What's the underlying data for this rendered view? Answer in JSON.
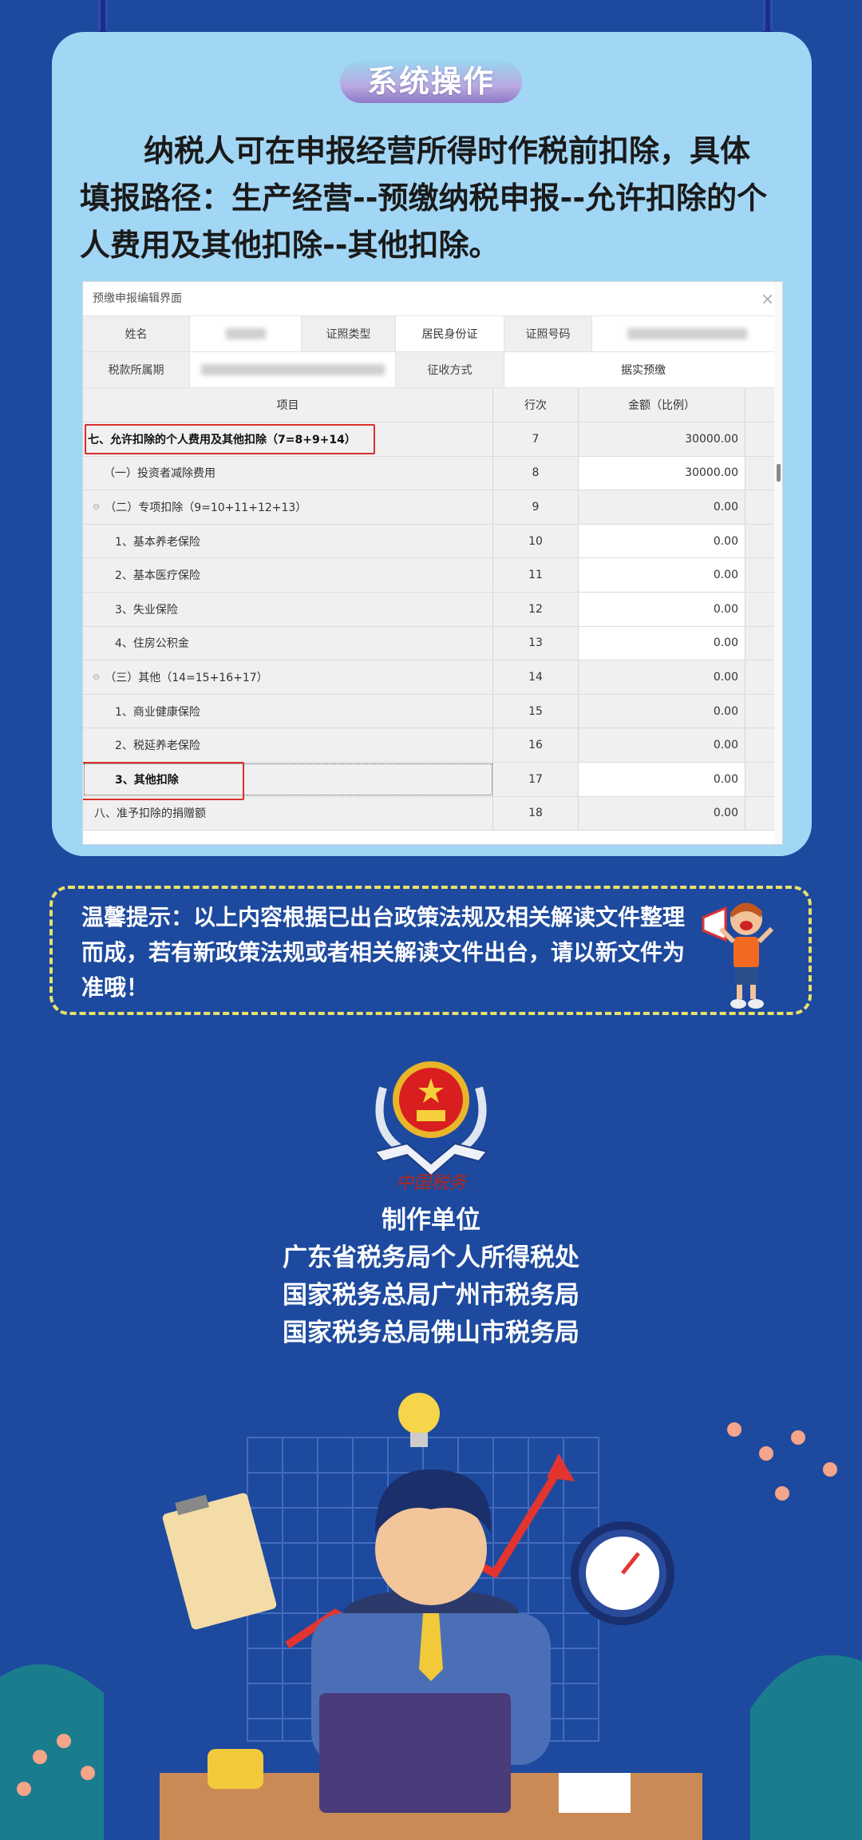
{
  "colors": {
    "background": "#1d4a9e",
    "card": "#a2d6f5",
    "highlight": "#d9302c",
    "tip_border": "#e8e06a"
  },
  "section_title": "系统操作",
  "paragraph": [
    "纳税人可在申报经营所得时作税前扣除，具体",
    "填报路径：生产经营--预缴纳税申报--允许扣除的个",
    "人费用及其他扣除--其他扣除。"
  ],
  "screenshot": {
    "window_title": "预缴申报编辑界面",
    "close_icon": "close-icon",
    "info": {
      "name_label": "姓名",
      "id_type_label": "证照类型",
      "id_type_value": "居民身份证",
      "id_number_label": "证照号码",
      "period_label": "税款所属期",
      "method_label": "征收方式",
      "method_value": "据实预缴"
    },
    "columns": [
      "项目",
      "行次",
      "金额（比例）"
    ],
    "rows": [
      {
        "item": "七、允许扣除的个人费用及其他扣除（7=8+9+14）",
        "line": "7",
        "amount": "30000.00"
      },
      {
        "item": "（一）投资者减除费用",
        "line": "8",
        "amount": "30000.00"
      },
      {
        "item": "（二）专项扣除（9=10+11+12+13）",
        "line": "9",
        "amount": "0.00"
      },
      {
        "item": "1、基本养老保险",
        "line": "10",
        "amount": "0.00"
      },
      {
        "item": "2、基本医疗保险",
        "line": "11",
        "amount": "0.00"
      },
      {
        "item": "3、失业保险",
        "line": "12",
        "amount": "0.00"
      },
      {
        "item": "4、住房公积金",
        "line": "13",
        "amount": "0.00"
      },
      {
        "item": "（三）其他（14=15+16+17）",
        "line": "14",
        "amount": "0.00"
      },
      {
        "item": "1、商业健康保险",
        "line": "15",
        "amount": "0.00"
      },
      {
        "item": "2、税延养老保险",
        "line": "16",
        "amount": "0.00"
      },
      {
        "item": "3、其他扣除",
        "line": "17",
        "amount": "0.00"
      },
      {
        "item": "八、准予扣除的捐赠额",
        "line": "18",
        "amount": "0.00"
      }
    ]
  },
  "tip": "温馨提示：以上内容根据已出台政策法规及相关解读文件整理而成，若有新政策法规或者相关解读文件出台，请以新文件为准哦！",
  "logo_text": "中国税务",
  "credits": {
    "title": "制作单位",
    "units": [
      "广东省税务局个人所得税处",
      "国家税务总局广州市税务局",
      "国家税务总局佛山市税务局"
    ]
  }
}
